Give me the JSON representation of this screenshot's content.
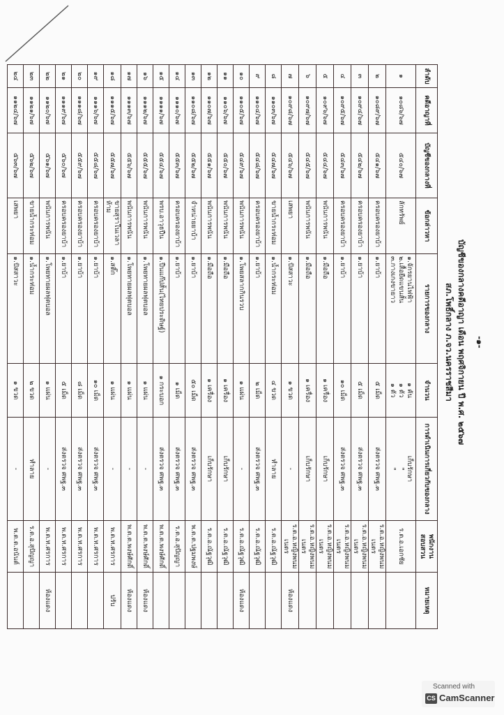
{
  "document": {
    "page_number": "-๑-",
    "title": "บัญชีของกลางคดีอาญา เดือน พฤศจิกายน ปี พ.ศ. ๒๕๖๗",
    "subtitle": "สภ.โพธิ์กลาง ภ.จว.นครราชสีมา"
  },
  "table": {
    "headers": [
      "ลำดับ",
      "คดีอาญาที่",
      "บัญชีของกลางที่",
      "ข้อกล่าวหา",
      "รายการของกลาง",
      "จำนวน",
      "การดำเนินการเกี่ยวกับของกลาง",
      "พนักงานสอบสวน",
      "หมายเหตุ"
    ],
    "rows": [
      [
        "๑",
        "๑๐๘๖/๖๗",
        "๕๔๐/๖๗",
        "ลักทรัพย์",
        "๑.จักรยานไฟฟ้า\n๒.เสื้อยืดแขนสั้น\n๓.กางเกงขายาว",
        "๑ คัน\n๑ ตัว\n๑ ตัว",
        "เก็บรักษา\n\"\n\"",
        "ร.ต.อ.เอกชัย",
        ""
      ],
      [
        "๒",
        "๑๐๘๙/๖๗",
        "๕๔๑/๖๗",
        "ครอบครองยาบ้า",
        "๑.ยาบ้า",
        "๕ เม็ด",
        "ส่งตรวจ ศพฐ.๓",
        "ร.ต.อ.หญิงพนมเนตร",
        ""
      ],
      [
        "๓",
        "๑๐๙๔/๖๗",
        "๕๔๒/๖๗",
        "ครอบครองยาบ้า",
        "๑.ยาบ้า",
        "๕ เม็ด",
        "ส่งตรวจ ศพฐ.๓",
        "ร.ต.อ.หญิงพนมเนตร",
        ""
      ],
      [
        "๔",
        "๑๐๙๕/๖๗",
        "๕๔๓/๖๗",
        "ครอบครองยาบ้า",
        "๑.ยาบ้า",
        "๑๐ เม็ด",
        "ส่งตรวจ ศพฐ.๓",
        "ร.ต.อ.หญิงพนมเนตร",
        ""
      ],
      [
        "๕",
        "๑๐๙๖/๖๗",
        "๕๔๔/๖๗",
        "พนันการพนัน",
        "๑.มือถือ",
        "๑ เครื่อง",
        "เก็บรักษา",
        "ร.ต.อ.หญิงพนมเนตร",
        ""
      ],
      [
        "๖",
        "๑๐๙๗/๖๗",
        "๕๔๕/๖๗",
        "พนันการพนัน",
        "๑.มือถือ",
        "๑ เครื่อง",
        "เก็บรักษา",
        "ร.ต.อ.หญิงพนมเนตร",
        ""
      ],
      [
        "๗",
        "๑๐๙๘/๖๗",
        "๕๔๖/๖๗",
        "เสพยา",
        "๑.ปัสสาวะ",
        "๑ ขวด",
        "-",
        "ร.ต.อ.หญิงพนมเนตร",
        "ห้องแดง"
      ],
      [
        "๘",
        "๑๑๐๓/๖๗",
        "๕๔๗/๖๗",
        "ขายน้ำกระท่อม",
        "๑.น้ำกระท่อม",
        "๔ ขวด",
        "ทำลาย",
        "ร.ต.อ.ณัฐวุฒิ",
        ""
      ],
      [
        "๙",
        "๑๑๐๔/๖๗",
        "๕๔๘/๖๗",
        "ครอบครองยาบ้า",
        "๑.ยาบ้า",
        "๒ เม็ด",
        "ส่งตรวจ ศพฐ.๓",
        "ร.ต.อ.ณัฐวุฒิ",
        ""
      ],
      [
        "๑๐",
        "๑๑๐๕/๖๗",
        "๕๔๙/๖๗",
        "พนันการพนัน",
        "๑.โพยสลากกินรวบ",
        "๑ แผ่น",
        "-",
        "ร.ต.อ.ณัฐวุฒิ",
        "ห้องแดง"
      ],
      [
        "๑๑",
        "๑๑๐๖/๖๗",
        "๕๕๐/๖๗",
        "พนันการพนัน",
        "๑.มือถือ",
        "๑ เครื่อง",
        "เก็บรักษา",
        "ร.ต.อ.ณัฐวุฒิ",
        ""
      ],
      [
        "๑๒",
        "๑๑๐๗/๖๗",
        "๕๕๑/๖๗",
        "พนันการพนัน",
        "๑.มือถือ",
        "๑ เครื่อง",
        "เก็บรักษา",
        "ร.ต.อ.ณัฐวุฒิ",
        ""
      ],
      [
        "๑๓",
        "๑๑๐๘/๖๗",
        "๕๕๒/๖๗",
        "จำหน่ายยาบ้า",
        "๑.ยาบ้า",
        "๕๐ เม็ด",
        "ส่งตรวจ ศพฐ.๓",
        "พ.ต.ต.ปฐมพงษ์",
        ""
      ],
      [
        "๑๔",
        "๑๑๑๐/๖๗",
        "๕๕๓/๖๗",
        "ครอบครองยาบ้า",
        "๑.ยาบ้า",
        "๑ เม็ด",
        "ส่งตรวจ ศพฐ.๓",
        "ร.ต.อ.สุปัญญา",
        ""
      ],
      [
        "๑๕",
        "๑๑๑๑/๖๗",
        "๕๕๔/๖๗",
        "พรบ.อาวุธปืน",
        "๑.ปืนแก๊ปสั้น(ไทยประดิษฐ์)",
        "๑ กระบอก",
        "ส่งตรวจ ศพฐ.๓",
        "พ.ต.ต.พงษ์ศักดิ์",
        ""
      ],
      [
        "๑๖",
        "๑๑๑๒/๖๗",
        "๕๕๕/๖๗",
        "พนันการพนัน",
        "๑.โพยทายผลฟุตบอล",
        "๑ แผ่น",
        "-",
        "พ.ต.ต.พงษ์ศักดิ์",
        "ห้องแดง"
      ],
      [
        "๑๗",
        "๑๑๑๓/๖๗",
        "๕๕๖/๖๗",
        "พนันการพนัน",
        "๑.โพยทายผลฟุตบอล",
        "๑ แผ่น",
        "-",
        "พ.ต.ต.พงษ์ศักดิ์",
        "ห้องแดง"
      ],
      [
        "๑๘",
        "๑๑๑๕/๖๗",
        "๕๕๗/๖๗",
        "ขายสุราในเวลาห้าม",
        "๑.สติ๊ก",
        "๑ แผ่น",
        "-",
        "พ.ต.ท.ศรการ",
        "ปรับ"
      ],
      [
        "๑๙",
        "๑๑๑๖/๖๗",
        "๕๕๘/๖๗",
        "ครอบครองยาบ้า",
        "๑.ยาบ้า",
        "๑๐ เม็ด",
        "ส่งตรวจ ศพฐ.๓",
        "พ.ต.ท.ศรการ",
        ""
      ],
      [
        "๒๐",
        "๑๑๑๘/๖๗",
        "๕๕๙/๖๗",
        "ครอบครองยาบ้า",
        "๑.ยาบ้า",
        "๘ เม็ด",
        "ส่งตรวจ ศพฐ.๓",
        "พ.ต.ท.ศรการ",
        ""
      ],
      [
        "๒๑",
        "๑๑๑๙/๖๗",
        "๕๖๐/๖๗",
        "ครอบครองยาบ้า",
        "๑.ยาบ้า",
        "๕ เม็ด",
        "ส่งตรวจ ศพฐ.๓",
        "พ.ต.ท.ศรการ",
        ""
      ],
      [
        "๒๒",
        "๑๑๒๐/๖๗",
        "๕๖๑/๖๗",
        "พนันการพนัน",
        "๑.โพยทายผลฟุตบอล",
        "๑ แผ่น",
        "-",
        "พ.ต.ท.ศรการ",
        "ห้องแดง"
      ],
      [
        "๒๓",
        "๑๑๒๑/๖๗",
        "๕๖๒/๖๗",
        "ขายน้ำกระท่อม",
        "๑.น้ำกระท่อม",
        "๒ ขวด",
        "ทำลาย",
        "ร.ต.อ.สุปัญญา",
        ""
      ],
      [
        "๒๔",
        "๑๑๒๔/๖๗",
        "๕๖๓/๖๗",
        "เสพยา",
        "๑.ปัสสาวะ",
        "๑ ขวด",
        "-",
        "พ.ต.ต.อนันต์",
        ""
      ]
    ]
  },
  "watermark": {
    "line1": "Scanned with",
    "logo": "CS",
    "line2": "CamScanner"
  }
}
